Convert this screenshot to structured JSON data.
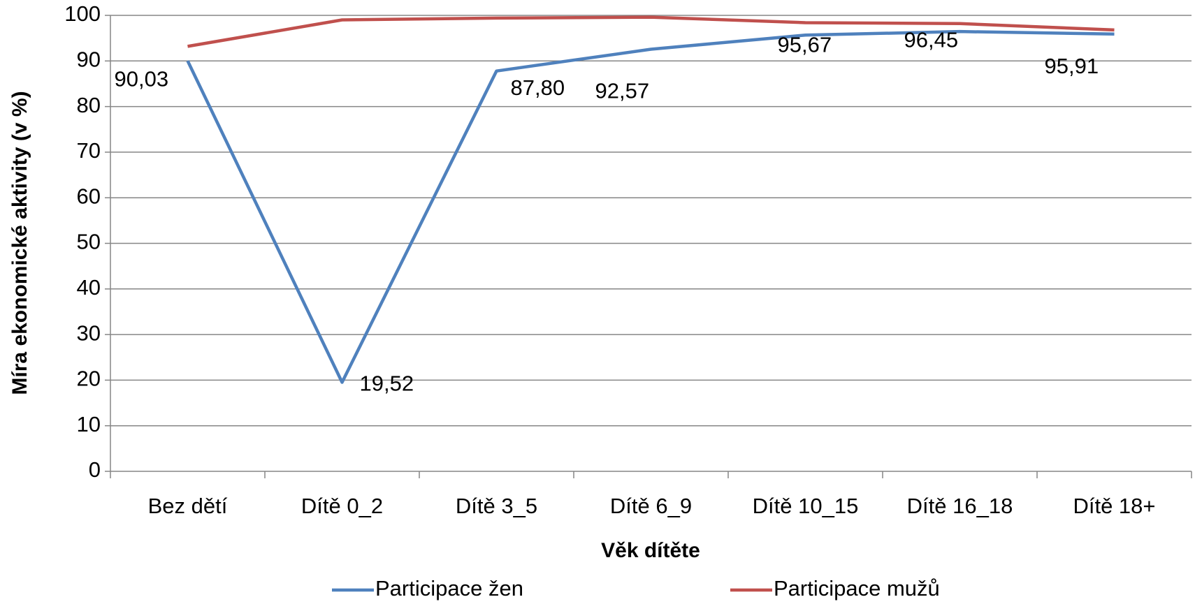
{
  "chart_data": {
    "type": "line",
    "categories": [
      "Bez dětí",
      "Dítě 0_2",
      "Dítě 3_5",
      "Dítě 6_9",
      "Dítě 10_15",
      "Dítě 16_18",
      "Dítě 18+"
    ],
    "series": [
      {
        "name": "Participace žen",
        "color": "#4f81bd",
        "values": [
          90.03,
          19.52,
          87.8,
          92.57,
          95.67,
          96.45,
          95.91
        ],
        "value_labels": [
          "90,03",
          "19,52",
          "87,80",
          "92,57",
          "95,67",
          "96,45",
          "95,91"
        ]
      },
      {
        "name": "Participace mužů",
        "color": "#c0504d",
        "values": [
          93.2,
          99.0,
          99.4,
          99.6,
          98.4,
          98.2,
          96.8
        ]
      }
    ],
    "x_label": "Věk dítěte",
    "y_label": "Míra ekonomické aktivity (v %)",
    "ylim": [
      0,
      100
    ],
    "yticks": [
      0,
      10,
      20,
      30,
      40,
      50,
      60,
      70,
      80,
      90,
      100
    ],
    "grid": true,
    "legend": "bottom"
  }
}
